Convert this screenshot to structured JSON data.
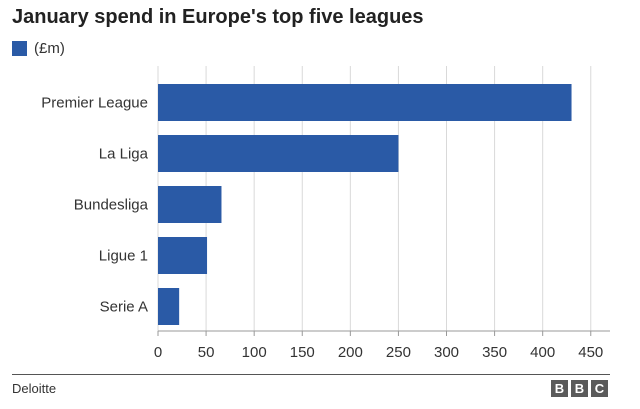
{
  "chart_data": {
    "type": "bar",
    "orientation": "horizontal",
    "title": "January spend in Europe's top five leagues",
    "categories": [
      "Premier League",
      "La Liga",
      "Bundesliga",
      "Ligue 1",
      "Serie A"
    ],
    "series": [
      {
        "name": "(£m)",
        "values": [
          430,
          250,
          66,
          51,
          22
        ]
      }
    ],
    "xlim": [
      0,
      470
    ],
    "xticks": [
      0,
      50,
      100,
      150,
      200,
      250,
      300,
      350,
      400,
      450
    ],
    "grid": true,
    "legend": "top-left",
    "bar_color": "#2a5aa6"
  },
  "footer": {
    "source": "Deloitte",
    "logo": [
      "B",
      "B",
      "C"
    ]
  }
}
